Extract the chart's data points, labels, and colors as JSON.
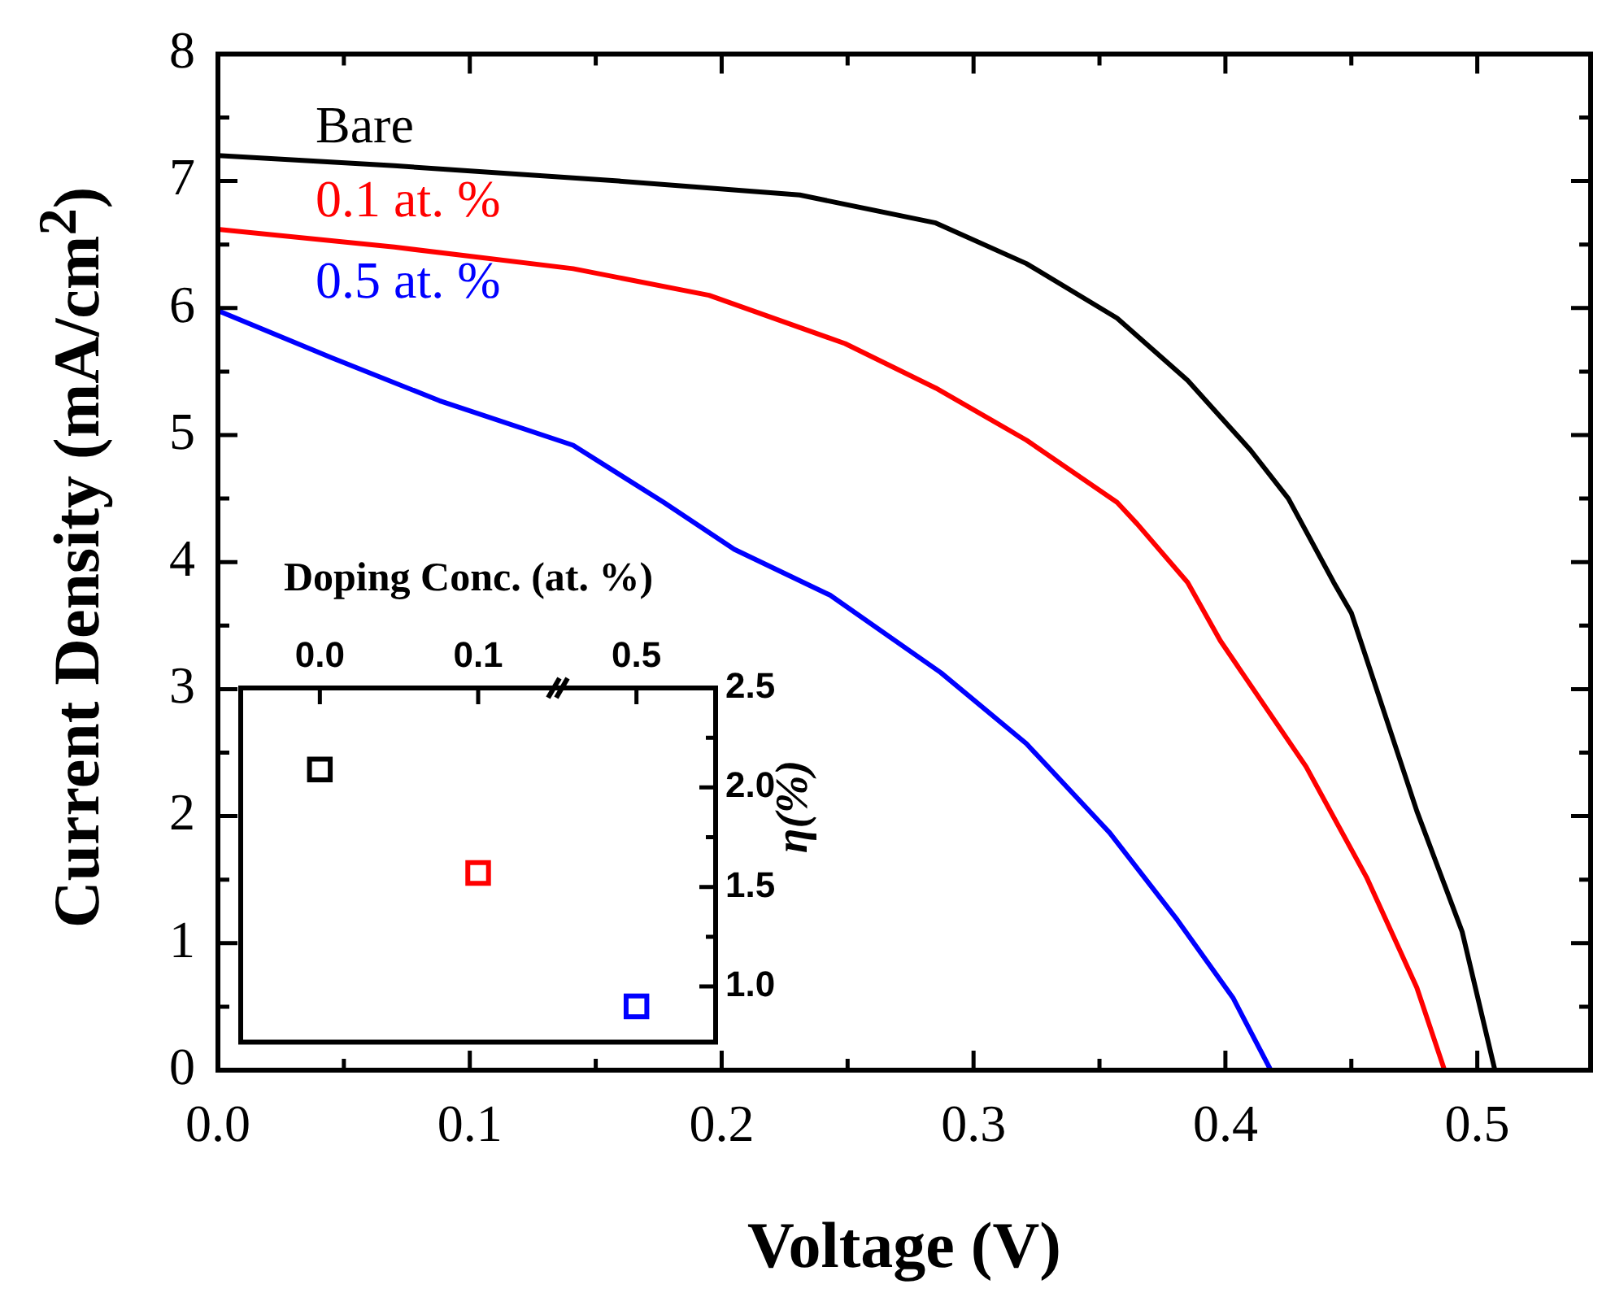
{
  "chart_data": [
    {
      "type": "line",
      "xlabel": "Voltage (V)",
      "ylabel": "Current Density (mA/cm$^{2}$)",
      "xlim": [
        0,
        0.545
      ],
      "xticks": [
        {
          "value": 0,
          "label": "0.0"
        },
        {
          "value": 0.05,
          "label": null
        },
        0.1,
        {
          "value": 0.15,
          "label": null
        },
        0.2,
        {
          "value": 0.25,
          "label": null
        },
        0.3,
        {
          "value": 0.35,
          "label": null
        },
        0.4,
        {
          "value": 0.45,
          "label": null
        },
        0.5
      ],
      "ylim": [
        0,
        8
      ],
      "yticks": [
        0,
        {
          "value": 0.5,
          "label": null
        },
        1,
        {
          "value": 1.5,
          "label": null
        },
        2,
        {
          "value": 2.5,
          "label": null
        },
        3,
        {
          "value": 3.5,
          "label": null
        },
        4,
        {
          "value": 4.5,
          "label": null
        },
        5,
        {
          "value": 5.5,
          "label": null
        },
        6,
        {
          "value": 6.5,
          "label": null
        },
        7,
        {
          "value": 7.5,
          "label": null
        },
        8
      ],
      "grid": false,
      "legend": "top left",
      "marker": "none",
      "line_style": "solid",
      "series": [
        {
          "name": "Bare",
          "color": "#000000",
          "x": [
            0,
            0.07,
            0.159,
            0.231,
            0.285,
            0.321,
            0.357,
            0.385,
            0.41,
            0.425,
            0.443,
            0.45,
            0.476,
            0.494,
            0.507
          ],
          "values": [
            7.2,
            7.12,
            7.0,
            6.89,
            6.67,
            6.35,
            5.92,
            5.43,
            4.88,
            4.5,
            3.84,
            3.6,
            2.04,
            1.09,
            0
          ]
        },
        {
          "name": "0.1 at. %",
          "color": "#ff0000",
          "x": [
            0,
            0.07,
            0.141,
            0.195,
            0.249,
            0.285,
            0.321,
            0.357,
            0.365,
            0.385,
            0.398,
            0.432,
            0.456,
            0.476,
            0.487
          ],
          "values": [
            6.62,
            6.48,
            6.31,
            6.1,
            5.72,
            5.37,
            4.96,
            4.47,
            4.3,
            3.84,
            3.38,
            2.39,
            1.52,
            0.65,
            0
          ]
        },
        {
          "name": "0.5 at. %",
          "color": "#0000ff",
          "x": [
            0,
            0.045,
            0.088,
            0.141,
            0.177,
            0.205,
            0.243,
            0.287,
            0.321,
            0.354,
            0.381,
            0.403,
            0.418
          ],
          "values": [
            5.98,
            5.61,
            5.27,
            4.92,
            4.47,
            4.1,
            3.74,
            3.13,
            2.57,
            1.87,
            1.18,
            0.57,
            0
          ]
        }
      ]
    },
    {
      "type": "scatter",
      "xlabel": "Doping Conc. (at. %)",
      "ylabel": "η(%)",
      "categories": [
        "0.0",
        "0.1",
        "0.5"
      ],
      "values": [
        2.09,
        1.57,
        0.9
      ],
      "colors": [
        "#000000",
        "#ff0000",
        "#0000ff"
      ],
      "ylim": [
        0.72,
        2.5
      ],
      "yticks": [
        {
          "value": 1,
          "label": "1.0"
        },
        {
          "value": 1.25,
          "label": null
        },
        1.5,
        {
          "value": 1.75,
          "label": null
        },
        {
          "value": 2,
          "label": "2.0"
        },
        {
          "value": 2.25,
          "label": null
        },
        2.5
      ],
      "marker": "square",
      "legend": false,
      "grid": false
    }
  ]
}
